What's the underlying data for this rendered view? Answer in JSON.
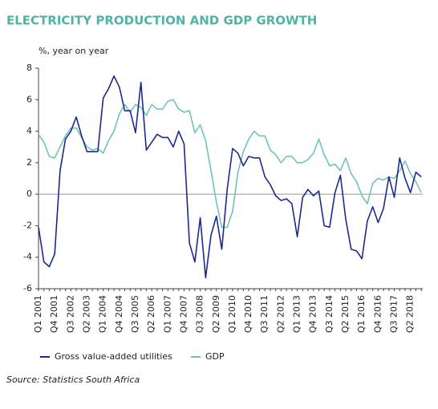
{
  "chart_data": {
    "type": "line",
    "title": "ELECTRICITY PRODUCTION AND GDP GROWTH",
    "y_label": "%, year on year",
    "source": "Source: Statistics South Africa",
    "categories": [
      "Q1 2001",
      null,
      null,
      "Q4 2001",
      null,
      null,
      "Q3 2002",
      null,
      null,
      "Q2 2003",
      null,
      null,
      "Q1 2004",
      null,
      null,
      "Q4 2004",
      null,
      null,
      "Q3 2005",
      null,
      null,
      "Q2 2006",
      null,
      null,
      "Q1 2007",
      null,
      null,
      "Q4 2007",
      null,
      null,
      "Q3 2008",
      null,
      null,
      "Q2 2009",
      null,
      null,
      "Q1 2010",
      null,
      null,
      "Q4 2010",
      null,
      null,
      "Q3 2011",
      null,
      null,
      "Q2 2012",
      null,
      null,
      "Q1 2013",
      null,
      null,
      "Q4 2013",
      null,
      null,
      "Q3 2014",
      null,
      null,
      "Q2 2015",
      null,
      null,
      "Q1 2016",
      null,
      null,
      "Q4 2016",
      null,
      null,
      "Q3 2017",
      null,
      null,
      "Q2 2018",
      null,
      null
    ],
    "series": [
      {
        "name": "Gross value-added utilities",
        "color": "#1b2a8c",
        "values": [
          -2.1,
          -4.3,
          -4.6,
          -3.8,
          1.5,
          3.5,
          4.0,
          4.9,
          3.7,
          2.7,
          2.7,
          2.7,
          6.1,
          6.7,
          7.5,
          6.8,
          5.3,
          5.3,
          3.9,
          7.1,
          2.8,
          3.3,
          3.8,
          3.6,
          3.6,
          3.0,
          4.0,
          3.2,
          -3.1,
          -4.3,
          -1.5,
          -5.3,
          -2.6,
          -1.4,
          -3.5,
          0.3,
          2.9,
          2.6,
          1.8,
          2.4,
          2.3,
          2.3,
          1.1,
          0.6,
          -0.1,
          -0.4,
          -0.3,
          -0.6,
          -2.7,
          -0.2,
          0.3,
          -0.1,
          0.2,
          -2.0,
          -2.1,
          0.1,
          1.2,
          -1.6,
          -3.5,
          -3.6,
          -4.1,
          -1.7,
          -0.8,
          -1.8,
          -0.9,
          1.1,
          -0.2,
          2.3,
          1.0,
          0.1,
          1.4,
          1.1
        ]
      },
      {
        "name": "GDP",
        "color": "#6fc4b9",
        "values": [
          3.8,
          3.3,
          2.4,
          2.3,
          3.0,
          3.7,
          4.2,
          4.2,
          3.6,
          3.0,
          2.8,
          2.9,
          2.6,
          3.4,
          4.0,
          5.1,
          5.7,
          5.2,
          5.7,
          5.5,
          5.0,
          5.7,
          5.4,
          5.4,
          5.9,
          6.0,
          5.4,
          5.2,
          5.3,
          3.9,
          4.4,
          3.4,
          1.5,
          -0.5,
          -2.1,
          -2.1,
          -1.1,
          1.4,
          2.7,
          3.5,
          4.0,
          3.7,
          3.7,
          2.8,
          2.5,
          2.0,
          2.4,
          2.4,
          2.0,
          2.0,
          2.2,
          2.6,
          3.5,
          2.5,
          1.8,
          1.9,
          1.5,
          2.3,
          1.3,
          0.8,
          -0.1,
          -0.6,
          0.7,
          1.0,
          0.9,
          1.1,
          1.0,
          1.5,
          2.1,
          1.3,
          0.8,
          0.1
        ]
      }
    ],
    "ylim": [
      -6,
      8
    ],
    "yticks": [
      -6,
      -4,
      -2,
      0,
      2,
      4,
      6,
      8
    ]
  }
}
